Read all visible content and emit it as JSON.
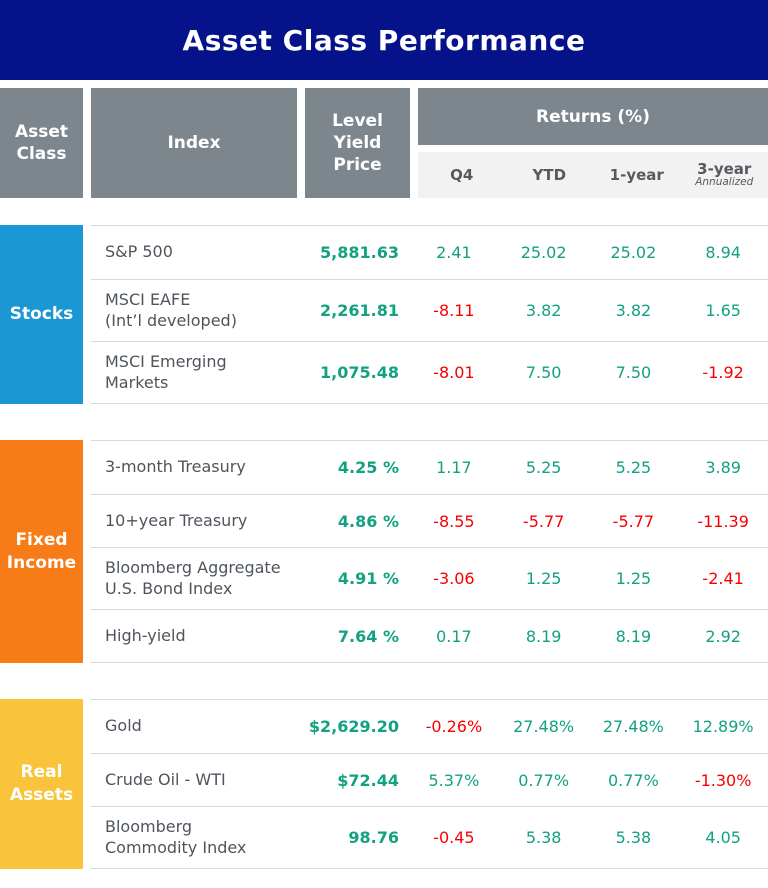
{
  "title": "Asset Class Performance",
  "colors": {
    "navy": "#05128A",
    "header_gray": "#7E868D",
    "subheader_bg": "#F2F2F2",
    "stocks_blue": "#1B97D4",
    "fixed_income_orange": "#F77B17",
    "real_assets_yellow": "#F9C33C",
    "positive_green": "#12A183",
    "negative_red": "#F80000"
  },
  "header": {
    "asset_class": "Asset\nClass",
    "index": "Index",
    "level": "Level\nYield\nPrice",
    "returns": "Returns (%)",
    "sub_columns": [
      "Q4",
      "YTD",
      "1-year",
      "3-year"
    ],
    "sub_note": "Annualized"
  },
  "sections": [
    {
      "label": "Stocks",
      "rows": [
        {
          "index": "S&P 500",
          "level": "5,881.63",
          "q4": "2.41",
          "ytd": "25.02",
          "y1": "25.02",
          "y3": "8.94"
        },
        {
          "index": "MSCI EAFE\n(Int’l developed)",
          "level": "2,261.81",
          "q4": "-8.11",
          "ytd": "3.82",
          "y1": "3.82",
          "y3": "1.65"
        },
        {
          "index": "MSCI Emerging\nMarkets",
          "level": "1,075.48",
          "q4": "-8.01",
          "ytd": "7.50",
          "y1": "7.50",
          "y3": "-1.92"
        }
      ]
    },
    {
      "label": "Fixed\nIncome",
      "rows": [
        {
          "index": "3-month Treasury",
          "level": "4.25 %",
          "q4": "1.17",
          "ytd": "5.25",
          "y1": "5.25",
          "y3": "3.89"
        },
        {
          "index": "10+year Treasury",
          "level": "4.86 %",
          "q4": "-8.55",
          "ytd": "-5.77",
          "y1": "-5.77",
          "y3": "-11.39"
        },
        {
          "index": "Bloomberg Aggregate\nU.S. Bond Index",
          "level": "4.91 %",
          "q4": "-3.06",
          "ytd": "1.25",
          "y1": "1.25",
          "y3": "-2.41"
        },
        {
          "index": "High-yield",
          "level": "7.64 %",
          "q4": "0.17",
          "ytd": "8.19",
          "y1": "8.19",
          "y3": "2.92"
        }
      ]
    },
    {
      "label": "Real\nAssets",
      "rows": [
        {
          "index": "Gold",
          "level": "$2,629.20",
          "q4": "-0.26%",
          "ytd": "27.48%",
          "y1": "27.48%",
          "y3": "12.89%"
        },
        {
          "index": "Crude Oil - WTI",
          "level": "$72.44",
          "q4": "5.37%",
          "ytd": "0.77%",
          "y1": "0.77%",
          "y3": "-1.30%"
        },
        {
          "index": "Bloomberg\nCommodity Index",
          "level": "98.76",
          "q4": "-0.45",
          "ytd": "5.38",
          "y1": "5.38",
          "y3": "4.05"
        }
      ]
    }
  ],
  "chart_data": {
    "type": "table",
    "title": "Asset Class Performance",
    "columns": [
      "Asset Class",
      "Index",
      "Level/Yield/Price",
      "Q4",
      "YTD",
      "1-year",
      "3-year Annualized"
    ],
    "rows": [
      [
        "Stocks",
        "S&P 500",
        "5,881.63",
        2.41,
        25.02,
        25.02,
        8.94
      ],
      [
        "Stocks",
        "MSCI EAFE (Int’l developed)",
        "2,261.81",
        -8.11,
        3.82,
        3.82,
        1.65
      ],
      [
        "Stocks",
        "MSCI Emerging Markets",
        "1,075.48",
        -8.01,
        7.5,
        7.5,
        -1.92
      ],
      [
        "Fixed Income",
        "3-month Treasury",
        "4.25 %",
        1.17,
        5.25,
        5.25,
        3.89
      ],
      [
        "Fixed Income",
        "10+year Treasury",
        "4.86 %",
        -8.55,
        -5.77,
        -5.77,
        -11.39
      ],
      [
        "Fixed Income",
        "Bloomberg Aggregate U.S. Bond Index",
        "4.91 %",
        -3.06,
        1.25,
        1.25,
        -2.41
      ],
      [
        "Fixed Income",
        "High-yield",
        "7.64 %",
        0.17,
        8.19,
        8.19,
        2.92
      ],
      [
        "Real Assets",
        "Gold",
        "$2,629.20",
        -0.26,
        27.48,
        27.48,
        12.89
      ],
      [
        "Real Assets",
        "Crude Oil - WTI",
        "$72.44",
        5.37,
        0.77,
        0.77,
        -1.3
      ],
      [
        "Real Assets",
        "Bloomberg Commodity Index",
        "98.76",
        -0.45,
        5.38,
        5.38,
        4.05
      ]
    ],
    "notes": "Returns in percent; positive values rendered teal-green, negative values red"
  }
}
